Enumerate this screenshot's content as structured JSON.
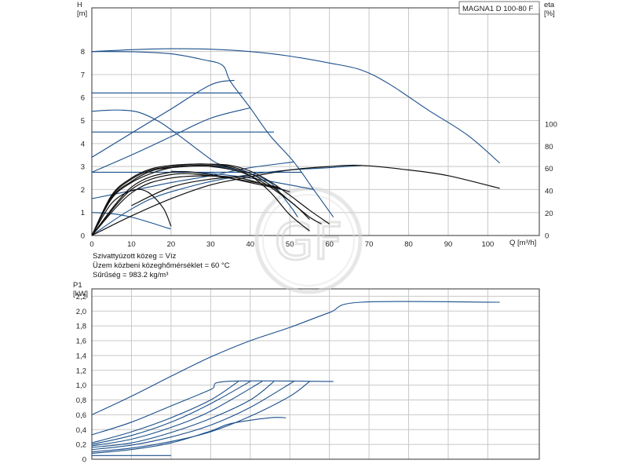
{
  "product_label": "MAGNA1 D 100-80 F",
  "watermark": "GF",
  "info_lines": [
    "Szivattyúzott közeg = Víz",
    "Üzem közbeni közeghőmérséklet = 60 °C",
    "Sűrűség = 983.2 kg/m³"
  ],
  "colors": {
    "curve": "#1a4f8b",
    "black": "#111111",
    "grid": "#c8c8c8",
    "frame": "#333333",
    "watermark": "#d9d9d9"
  },
  "chart_data": [
    {
      "type": "line",
      "id": "head-efficiency",
      "title": "",
      "xlabel": "Q [m³/h]",
      "ylabel": "H\n[m]",
      "y2label": "eta\n[%]",
      "xlim": [
        0,
        113
      ],
      "ylim": [
        0,
        9.9
      ],
      "y2lim": [
        0,
        100
      ],
      "grid": true,
      "x_ticks": [
        "0",
        "10",
        "20",
        "30",
        "40",
        "50",
        "60",
        "70",
        "80",
        "90",
        "100"
      ],
      "y_ticks": [
        "0",
        "1",
        "2",
        "3",
        "4",
        "5",
        "6",
        "7",
        "8"
      ],
      "y2_ticks": [
        "0",
        "20",
        "40",
        "60",
        "80",
        "100"
      ],
      "series": [
        {
          "color": "#1a4f8b",
          "axis": "y",
          "points": [
            [
              0,
              8.0
            ],
            [
              10,
              7.99
            ],
            [
              20,
              7.9
            ],
            [
              28,
              7.65
            ],
            [
              33,
              7.4
            ],
            [
              35,
              6.7
            ],
            [
              40,
              5.55
            ],
            [
              45,
              4.35
            ],
            [
              51,
              3.2
            ],
            [
              56,
              2.0
            ],
            [
              61,
              0.8
            ]
          ]
        },
        {
          "color": "#1a4f8b",
          "axis": "y",
          "points": [
            [
              0,
              8.0
            ],
            [
              10,
              8.08
            ],
            [
              20,
              8.12
            ],
            [
              30,
              8.1
            ],
            [
              40,
              8.0
            ],
            [
              50,
              7.8
            ],
            [
              60,
              7.5
            ],
            [
              68,
              7.2
            ],
            [
              75,
              6.6
            ],
            [
              85,
              5.45
            ],
            [
              95,
              4.35
            ],
            [
              103,
              3.15
            ]
          ]
        },
        {
          "color": "#1a4f8b",
          "axis": "y",
          "points": [
            [
              0,
              5.4
            ],
            [
              4,
              5.45
            ],
            [
              8,
              5.45
            ],
            [
              12,
              5.35
            ],
            [
              17,
              4.95
            ],
            [
              22,
              4.35
            ],
            [
              27,
              3.7
            ],
            [
              31,
              3.2
            ],
            [
              34,
              3.0
            ]
          ]
        },
        {
          "color": "#1a4f8b",
          "axis": "y",
          "points": [
            [
              0,
              1.0
            ],
            [
              5,
              0.95
            ],
            [
              10,
              0.8
            ],
            [
              15,
              0.55
            ],
            [
              19,
              0.33
            ],
            [
              20,
              0.3
            ]
          ]
        },
        {
          "color": "#1a4f8b",
          "axis": "y",
          "points": [
            [
              0,
              0.0
            ],
            [
              5,
              0.6
            ],
            [
              10,
              1.15
            ],
            [
              15,
              1.6
            ],
            [
              20,
              1.9
            ],
            [
              30,
              2.35
            ],
            [
              40,
              2.65
            ],
            [
              50,
              2.85
            ],
            [
              60,
              2.95
            ],
            [
              68,
              3.05
            ]
          ]
        },
        {
          "color": "#1a4f8b",
          "axis": "y",
          "points": [
            [
              0,
              2.75
            ],
            [
              10,
              3.5
            ],
            [
              20,
              4.3
            ],
            [
              30,
              5.1
            ],
            [
              40,
              5.55
            ]
          ]
        },
        {
          "color": "#1a4f8b",
          "axis": "y",
          "points": [
            [
              0,
              3.4
            ],
            [
              10,
              4.45
            ],
            [
              20,
              5.5
            ],
            [
              30,
              6.55
            ],
            [
              36,
              6.75
            ]
          ]
        },
        {
          "color": "#1a4f8b",
          "axis": "y",
          "points": [
            [
              0,
              1.6
            ],
            [
              10,
              1.95
            ],
            [
              20,
              2.3
            ],
            [
              30,
              2.6
            ],
            [
              40,
              2.95
            ],
            [
              51,
              3.2
            ]
          ]
        },
        {
          "color": "#1a4f8b",
          "axis": "y",
          "points": [
            [
              0,
              6.2
            ],
            [
              38,
              6.2
            ]
          ]
        },
        {
          "color": "#1a4f8b",
          "axis": "y",
          "points": [
            [
              0,
              4.5
            ],
            [
              46,
              4.5
            ]
          ]
        },
        {
          "color": "#1a4f8b",
          "axis": "y",
          "points": [
            [
              0,
              2.75
            ],
            [
              53,
              2.75
            ]
          ]
        },
        {
          "color": "#1a4f8b",
          "axis": "y",
          "points": [
            [
              20,
              2.8
            ],
            [
              30,
              2.7
            ],
            [
              40,
              2.5
            ],
            [
              50,
              2.2
            ],
            [
              56,
              2.0
            ]
          ]
        },
        {
          "color": "#1a4f8b",
          "axis": "y",
          "points": [
            [
              30,
              3.05
            ],
            [
              38,
              2.8
            ],
            [
              45,
              2.3
            ],
            [
              50,
              1.3
            ],
            [
              52,
              0.8
            ]
          ]
        },
        {
          "color": "#111111",
          "axis": "y",
          "points": [
            [
              0,
              0
            ],
            [
              5,
              1.4
            ],
            [
              10,
              1.95
            ],
            [
              14,
              1.9
            ],
            [
              18,
              1.2
            ],
            [
              20,
              0.4
            ]
          ]
        },
        {
          "color": "#111111",
          "axis": "y",
          "points": [
            [
              0,
              0
            ],
            [
              5,
              1.6
            ],
            [
              10,
              2.3
            ],
            [
              15,
              2.7
            ],
            [
              20,
              2.95
            ],
            [
              25,
              3.05
            ],
            [
              30,
              3.05
            ],
            [
              35,
              2.95
            ],
            [
              40,
              2.6
            ],
            [
              45,
              1.9
            ],
            [
              50,
              0.9
            ],
            [
              55,
              0.2
            ]
          ]
        },
        {
          "color": "#111111",
          "axis": "y",
          "points": [
            [
              0,
              0
            ],
            [
              5,
              1.7
            ],
            [
              10,
              2.45
            ],
            [
              15,
              2.85
            ],
            [
              20,
              3.0
            ],
            [
              25,
              3.1
            ],
            [
              30,
              3.1
            ],
            [
              35,
              3.0
            ],
            [
              40,
              2.7
            ],
            [
              45,
              2.2
            ],
            [
              50,
              1.5
            ],
            [
              55,
              0.8
            ],
            [
              58,
              0.5
            ]
          ]
        },
        {
          "color": "#111111",
          "axis": "y",
          "points": [
            [
              0,
              0
            ],
            [
              5,
              1.75
            ],
            [
              10,
              2.5
            ],
            [
              15,
              2.9
            ],
            [
              20,
              3.05
            ],
            [
              25,
              3.1
            ],
            [
              30,
              3.1
            ],
            [
              35,
              3.05
            ],
            [
              40,
              2.8
            ],
            [
              45,
              2.35
            ],
            [
              50,
              1.75
            ],
            [
              55,
              1.1
            ],
            [
              60,
              0.5
            ]
          ]
        },
        {
          "color": "#111111",
          "axis": "y",
          "points": [
            [
              0,
              0
            ],
            [
              5,
              1.65
            ],
            [
              10,
              2.35
            ],
            [
              15,
              2.8
            ],
            [
              20,
              2.95
            ],
            [
              30,
              3.0
            ],
            [
              40,
              2.6
            ],
            [
              50,
              1.5
            ],
            [
              55,
              0.7
            ]
          ]
        },
        {
          "color": "#111111",
          "axis": "y",
          "points": [
            [
              0,
              0
            ],
            [
              10,
              2.1
            ],
            [
              20,
              2.75
            ],
            [
              30,
              2.65
            ],
            [
              40,
              2.3
            ],
            [
              48,
              2.0
            ]
          ]
        },
        {
          "color": "#111111",
          "axis": "y",
          "points": [
            [
              0,
              0
            ],
            [
              10,
              2.0
            ],
            [
              20,
              2.65
            ],
            [
              30,
              2.6
            ],
            [
              40,
              2.35
            ],
            [
              47,
              2.1
            ]
          ]
        },
        {
          "color": "#111111",
          "axis": "y",
          "points": [
            [
              0,
              0
            ],
            [
              10,
              1.85
            ],
            [
              20,
              2.5
            ],
            [
              35,
              2.55
            ],
            [
              45,
              2.15
            ],
            [
              50,
              1.9
            ]
          ]
        },
        {
          "color": "#111111",
          "axis": "y",
          "points": [
            [
              10,
              1.3
            ],
            [
              20,
              2.1
            ],
            [
              30,
              2.45
            ],
            [
              40,
              2.6
            ]
          ]
        },
        {
          "color": "#111111",
          "axis": "y",
          "points": [
            [
              0,
              0
            ],
            [
              10,
              0.85
            ],
            [
              20,
              1.6
            ],
            [
              30,
              2.2
            ],
            [
              40,
              2.55
            ],
            [
              50,
              2.85
            ],
            [
              60,
              3.0
            ],
            [
              68,
              3.05
            ],
            [
              80,
              2.85
            ],
            [
              90,
              2.6
            ],
            [
              103,
              2.05
            ]
          ]
        }
      ]
    },
    {
      "type": "line",
      "id": "power",
      "title": "",
      "xlabel": "",
      "ylabel": "P1\n[kW]",
      "xlim": [
        0,
        113
      ],
      "ylim": [
        0,
        2.3
      ],
      "grid": true,
      "y_ticks": [
        "0",
        "0,2",
        "0,4",
        "0,6",
        "0,8",
        "1,0",
        "1,2",
        "1,4",
        "1,6",
        "1,8",
        "2,0",
        "2,2"
      ],
      "series": [
        {
          "color": "#1a4f8b",
          "points": [
            [
              0,
              0.6
            ],
            [
              10,
              0.85
            ],
            [
              20,
              1.12
            ],
            [
              30,
              1.38
            ],
            [
              40,
              1.6
            ],
            [
              50,
              1.78
            ],
            [
              60,
              1.98
            ],
            [
              68,
              2.12
            ],
            [
              103,
              2.12
            ]
          ]
        },
        {
          "color": "#1a4f8b",
          "points": [
            [
              0,
              0.33
            ],
            [
              10,
              0.5
            ],
            [
              20,
              0.72
            ],
            [
              30,
              0.94
            ],
            [
              34,
              1.05
            ],
            [
              61,
              1.05
            ]
          ]
        },
        {
          "color": "#1a4f8b",
          "points": [
            [
              0,
              0.22
            ],
            [
              10,
              0.37
            ],
            [
              20,
              0.56
            ],
            [
              30,
              0.8
            ],
            [
              37,
              1.05
            ]
          ]
        },
        {
          "color": "#1a4f8b",
          "points": [
            [
              0,
              0.2
            ],
            [
              10,
              0.32
            ],
            [
              20,
              0.5
            ],
            [
              30,
              0.75
            ],
            [
              40,
              1.05
            ]
          ]
        },
        {
          "color": "#1a4f8b",
          "points": [
            [
              0,
              0.18
            ],
            [
              10,
              0.27
            ],
            [
              20,
              0.43
            ],
            [
              30,
              0.65
            ],
            [
              43,
              1.05
            ]
          ]
        },
        {
          "color": "#1a4f8b",
          "points": [
            [
              0,
              0.16
            ],
            [
              10,
              0.22
            ],
            [
              20,
              0.36
            ],
            [
              30,
              0.55
            ],
            [
              40,
              0.8
            ],
            [
              46,
              1.05
            ]
          ]
        },
        {
          "color": "#1a4f8b",
          "points": [
            [
              0,
              0.13
            ],
            [
              10,
              0.19
            ],
            [
              20,
              0.3
            ],
            [
              30,
              0.46
            ],
            [
              40,
              0.7
            ],
            [
              51,
              1.05
            ]
          ]
        },
        {
          "color": "#1a4f8b",
          "points": [
            [
              0,
              0.1
            ],
            [
              10,
              0.15
            ],
            [
              20,
              0.24
            ],
            [
              30,
              0.37
            ],
            [
              40,
              0.58
            ],
            [
              50,
              0.85
            ],
            [
              55,
              1.05
            ]
          ]
        },
        {
          "color": "#1a4f8b",
          "points": [
            [
              0,
              0.08
            ],
            [
              10,
              0.13
            ],
            [
              20,
              0.22
            ],
            [
              30,
              0.38
            ],
            [
              35,
              0.48
            ],
            [
              45,
              0.56
            ],
            [
              49,
              0.56
            ]
          ]
        },
        {
          "color": "#1a4f8b",
          "points": [
            [
              0,
              0.05
            ],
            [
              20,
              0.05
            ]
          ]
        }
      ]
    }
  ]
}
